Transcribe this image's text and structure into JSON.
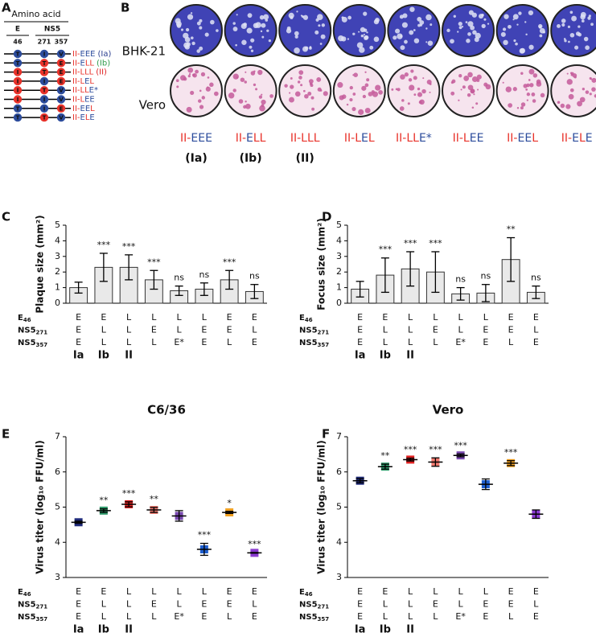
{
  "panel_labels": [
    "A",
    "B",
    "C",
    "D",
    "E",
    "F"
  ],
  "strain_prefix": "II-",
  "letter_colors": {
    "E": "#2c4c9c",
    "L": "#e8322a"
  },
  "group_colors": [
    "#2b3f8f",
    "#2e9a4a",
    "#e02020"
  ],
  "panel_a": {
    "header": "Amino acid",
    "proteins": [
      "E",
      "NS5"
    ],
    "positions": [
      "46",
      "271",
      "357"
    ],
    "rows": [
      {
        "residues": [
          "T",
          "I",
          "V"
        ],
        "genotype": [
          "E",
          "E",
          "E"
        ],
        "suffix": "(Ia)"
      },
      {
        "residues": [
          "T",
          "T",
          "E"
        ],
        "genotype": [
          "E",
          "L",
          "L"
        ],
        "suffix": "(Ib)"
      },
      {
        "residues": [
          "I",
          "T",
          "E"
        ],
        "genotype": [
          "L",
          "L",
          "L"
        ],
        "suffix": "(II)"
      },
      {
        "residues": [
          "I",
          "I",
          "E"
        ],
        "genotype": [
          "L",
          "E",
          "L"
        ]
      },
      {
        "residues": [
          "I",
          "T",
          "V"
        ],
        "genotype": [
          "L",
          "L",
          "E*"
        ]
      },
      {
        "residues": [
          "I",
          "I",
          "V"
        ],
        "genotype": [
          "L",
          "E",
          "E"
        ]
      },
      {
        "residues": [
          "T",
          "I",
          "E"
        ],
        "genotype": [
          "E",
          "E",
          "L"
        ]
      },
      {
        "residues": [
          "T",
          "T",
          "V"
        ],
        "genotype": [
          "E",
          "L",
          "E"
        ]
      }
    ]
  },
  "panel_b": {
    "cell_lines": [
      "BHK-21",
      "Vero"
    ]
  },
  "genotype_table": {
    "rows": [
      {
        "name": "E",
        "sub": "46",
        "values": [
          "E",
          "E",
          "L",
          "L",
          "L",
          "L",
          "E",
          "E"
        ]
      },
      {
        "name": "NS5",
        "sub": "271",
        "values": [
          "E",
          "L",
          "L",
          "E",
          "L",
          "E",
          "E",
          "L"
        ]
      },
      {
        "name": "NS5",
        "sub": "357",
        "values": [
          "E",
          "L",
          "L",
          "L",
          "E*",
          "E",
          "L",
          "E"
        ]
      }
    ],
    "groups": [
      "Ia",
      "Ib",
      "II"
    ]
  },
  "chart_data": [
    {
      "type": "bar",
      "ylabel": "Plaque size (mm²)",
      "ylim": [
        0,
        5
      ],
      "yticks": [
        0,
        1,
        2,
        3,
        4,
        5
      ],
      "bar_color": "#e9e9e9",
      "values": [
        1.0,
        2.3,
        2.3,
        1.5,
        0.8,
        0.9,
        1.5,
        0.75
      ],
      "errors": [
        0.35,
        0.9,
        0.8,
        0.6,
        0.3,
        0.4,
        0.6,
        0.45
      ],
      "significance": [
        null,
        "***",
        "***",
        "***",
        "ns",
        "ns",
        "***",
        "ns"
      ]
    },
    {
      "type": "bar",
      "ylabel": "Focus size (mm²)",
      "ylim": [
        0,
        5
      ],
      "yticks": [
        0,
        1,
        2,
        3,
        4,
        5
      ],
      "bar_color": "#e9e9e9",
      "values": [
        0.9,
        1.8,
        2.2,
        2.0,
        0.6,
        0.65,
        2.8,
        0.7
      ],
      "errors": [
        0.5,
        1.1,
        1.1,
        1.3,
        0.4,
        0.55,
        1.4,
        0.4
      ],
      "significance": [
        null,
        "***",
        "***",
        "***",
        "ns",
        "ns",
        "**",
        "ns"
      ]
    },
    {
      "type": "dot",
      "title": "C6/36",
      "ylabel": "Virus titer (log₁₀ FFU/ml)",
      "ylim": [
        3,
        7
      ],
      "yticks": [
        3,
        4,
        5,
        6,
        7
      ],
      "colors": [
        "#1f2a7a",
        "#2e9a6a",
        "#e02020",
        "#f07a70",
        "#7a4ab0",
        "#1f5fd0",
        "#f0a020",
        "#8a3ad0"
      ],
      "values": [
        4.57,
        4.9,
        5.08,
        4.92,
        4.75,
        3.8,
        4.85,
        3.7
      ],
      "errors": [
        0.03,
        0.05,
        0.07,
        0.07,
        0.15,
        0.17,
        0.03,
        0.01
      ],
      "significance": [
        null,
        "**",
        "***",
        "**",
        null,
        "***",
        "*",
        "***"
      ]
    },
    {
      "type": "dot",
      "title": "Vero",
      "ylabel": "Virus titer (log₁₀ FFU/ml)",
      "ylim": [
        3,
        7
      ],
      "yticks": [
        3,
        4,
        5,
        6,
        7
      ],
      "colors": [
        "#1f2a7a",
        "#2e9a6a",
        "#e02020",
        "#f07a70",
        "#7a4ab0",
        "#1f5fd0",
        "#f0a020",
        "#8a3ad0"
      ],
      "values": [
        5.75,
        6.15,
        6.35,
        6.28,
        6.47,
        5.65,
        6.25,
        4.8
      ],
      "errors": [
        0.06,
        0.07,
        0.04,
        0.12,
        0.04,
        0.15,
        0.07,
        0.12
      ],
      "significance": [
        null,
        "**",
        "***",
        "***",
        "***",
        null,
        "***",
        null
      ]
    }
  ]
}
